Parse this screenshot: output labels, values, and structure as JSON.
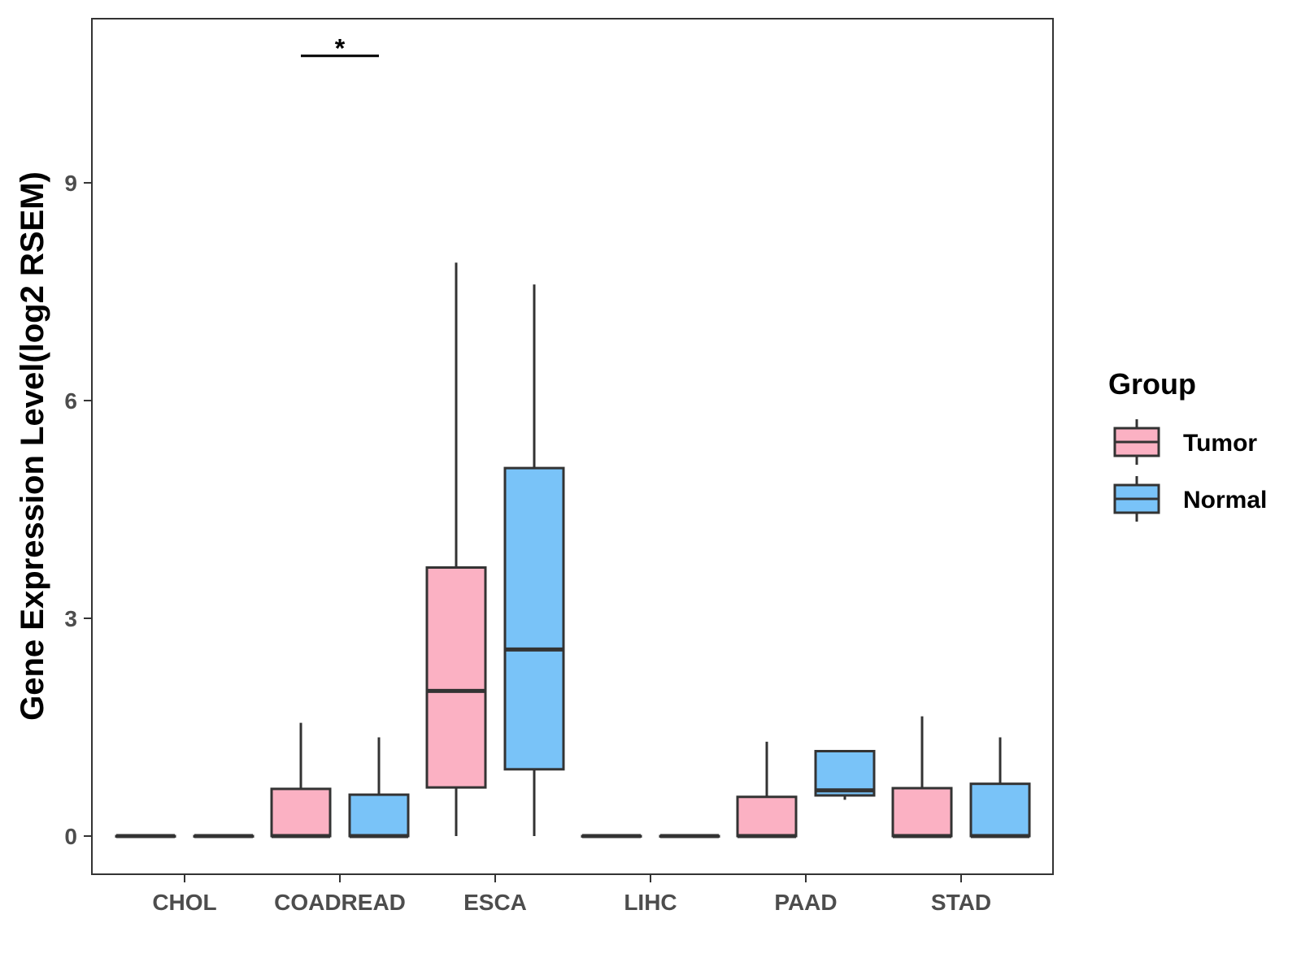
{
  "chart_data": {
    "type": "boxplot",
    "title": "",
    "xlabel": "",
    "ylabel": "Gene Expression Level(log2 RSEM)",
    "ylim": [
      -0.5,
      11.3
    ],
    "yticks": [
      0,
      3,
      6,
      9
    ],
    "ytick_labels": [
      "0",
      "3",
      "6",
      "9"
    ],
    "grid": false,
    "categories": [
      "CHOL",
      "COADREAD",
      "ESCA",
      "LIHC",
      "PAAD",
      "STAD"
    ],
    "legend": {
      "title": "Group",
      "position": "right",
      "entries": [
        "Tumor",
        "Normal"
      ]
    },
    "series": [
      {
        "name": "Tumor",
        "color": "#FBB1C3",
        "boxes": [
          {
            "category": "CHOL",
            "min": 0,
            "q1": 0,
            "median": 0,
            "q3": 0,
            "max": 0
          },
          {
            "category": "COADREAD",
            "min": 0,
            "q1": 0,
            "median": 0,
            "q3": 0.65,
            "max": 1.56
          },
          {
            "category": "ESCA",
            "min": 0,
            "q1": 0.67,
            "median": 2.0,
            "q3": 3.7,
            "max": 7.9
          },
          {
            "category": "LIHC",
            "min": 0,
            "q1": 0,
            "median": 0,
            "q3": 0,
            "max": 0
          },
          {
            "category": "PAAD",
            "min": 0,
            "q1": 0,
            "median": 0,
            "q3": 0.54,
            "max": 1.3
          },
          {
            "category": "STAD",
            "min": 0,
            "q1": 0,
            "median": 0,
            "q3": 0.66,
            "max": 1.65
          }
        ]
      },
      {
        "name": "Normal",
        "color": "#79C3F8",
        "boxes": [
          {
            "category": "CHOL",
            "min": 0,
            "q1": 0,
            "median": 0,
            "q3": 0,
            "max": 0
          },
          {
            "category": "COADREAD",
            "min": 0,
            "q1": 0,
            "median": 0,
            "q3": 0.57,
            "max": 1.36
          },
          {
            "category": "ESCA",
            "min": 0,
            "q1": 0.92,
            "median": 2.57,
            "q3": 5.07,
            "max": 7.6
          },
          {
            "category": "LIHC",
            "min": 0,
            "q1": 0,
            "median": 0,
            "q3": 0,
            "max": 0
          },
          {
            "category": "PAAD",
            "min": 0.5,
            "q1": 0.56,
            "median": 0.63,
            "q3": 1.17,
            "max": 1.17
          },
          {
            "category": "STAD",
            "min": 0,
            "q1": 0,
            "median": 0,
            "q3": 0.72,
            "max": 1.36
          }
        ]
      }
    ],
    "annotations": [
      {
        "category": "COADREAD",
        "text": "*",
        "y": 10.75
      }
    ]
  }
}
